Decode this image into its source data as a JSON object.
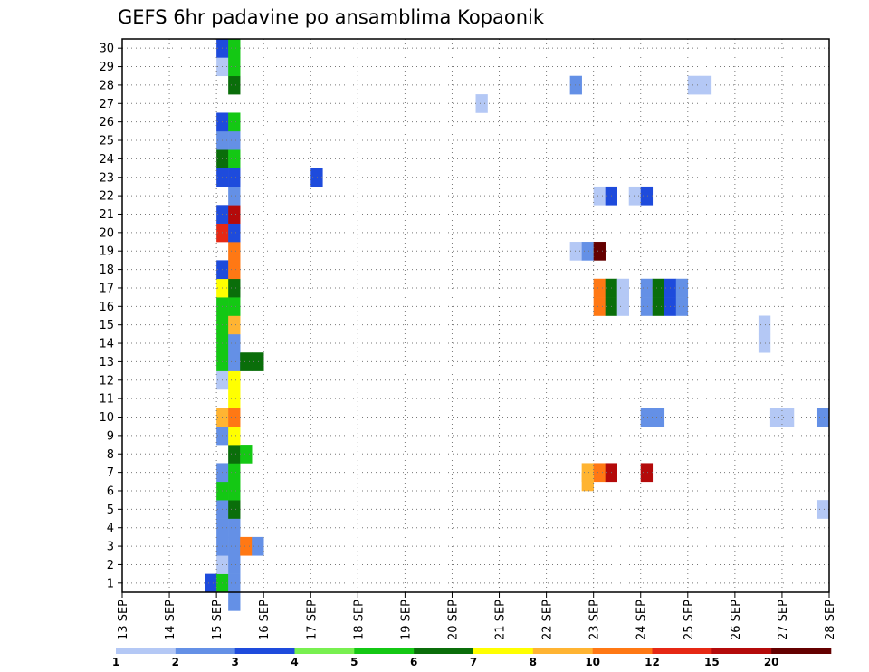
{
  "chart_data": {
    "type": "heatmap",
    "title": "GEFS 6hr padavine po ansamblima Kopaonik",
    "xlabel": "",
    "ylabel": "",
    "x_tick_labels": [
      "13 SEP",
      "14 SEP",
      "15 SEP",
      "16 SEP",
      "17 SEP",
      "18 SEP",
      "19 SEP",
      "20 SEP",
      "21 SEP",
      "22 SEP",
      "23 SEP",
      "24 SEP",
      "25 SEP",
      "26 SEP",
      "27 SEP",
      "28 SEP"
    ],
    "xlim": [
      0,
      60
    ],
    "y_tick_labels": [
      1,
      2,
      3,
      4,
      5,
      6,
      7,
      8,
      9,
      10,
      11,
      12,
      13,
      14,
      15,
      16,
      17,
      18,
      19,
      20,
      21,
      22,
      23,
      24,
      25,
      26,
      27,
      28,
      29,
      30
    ],
    "ylim": [
      0.5,
      30.5
    ],
    "grid": true,
    "time_step_hours": 6,
    "x_unit_note": "x = 6-hour step index from 13 SEP 00z",
    "legend_levels": [
      "1",
      "2",
      "3",
      "4",
      "5",
      "6",
      "7",
      "8",
      "10",
      "12",
      "15",
      "20"
    ],
    "legend_colors": [
      "#b4c8f5",
      "#6490e6",
      "#1e4bdc",
      "#78f050",
      "#14c814",
      "#0a6e0a",
      "#ffff00",
      "#ffb432",
      "#ff7814",
      "#e62814",
      "#b40a0a",
      "#640000"
    ],
    "cells": [
      [
        7,
        1,
        3
      ],
      [
        8,
        1,
        5
      ],
      [
        9,
        1,
        2
      ],
      [
        8,
        2,
        1
      ],
      [
        9,
        2,
        2
      ],
      [
        8,
        3,
        2
      ],
      [
        9,
        3,
        2
      ],
      [
        10,
        3,
        10
      ],
      [
        11,
        3,
        2
      ],
      [
        8,
        4,
        2
      ],
      [
        9,
        4,
        2
      ],
      [
        8,
        5,
        2
      ],
      [
        9,
        5,
        6
      ],
      [
        8,
        6,
        5
      ],
      [
        9,
        6,
        5
      ],
      [
        8,
        7,
        2
      ],
      [
        9,
        7,
        5
      ],
      [
        9,
        8,
        6
      ],
      [
        10,
        8,
        5
      ],
      [
        8,
        9,
        2
      ],
      [
        9,
        9,
        7
      ],
      [
        8,
        10,
        8
      ],
      [
        9,
        10,
        10
      ],
      [
        9,
        11,
        7
      ],
      [
        8,
        12,
        1
      ],
      [
        9,
        12,
        7
      ],
      [
        8,
        13,
        5
      ],
      [
        9,
        13,
        2
      ],
      [
        10,
        13,
        6
      ],
      [
        11,
        13,
        6
      ],
      [
        8,
        14,
        5
      ],
      [
        9,
        14,
        2
      ],
      [
        8,
        15,
        5
      ],
      [
        9,
        15,
        8
      ],
      [
        8,
        16,
        5
      ],
      [
        9,
        16,
        5
      ],
      [
        8,
        17,
        7
      ],
      [
        9,
        17,
        6
      ],
      [
        8,
        18,
        3
      ],
      [
        9,
        18,
        10
      ],
      [
        9,
        19,
        10
      ],
      [
        8,
        20,
        12
      ],
      [
        9,
        20,
        3
      ],
      [
        8,
        21,
        3
      ],
      [
        9,
        21,
        15
      ],
      [
        9,
        22,
        2
      ],
      [
        8,
        23,
        3
      ],
      [
        9,
        23,
        3
      ],
      [
        8,
        24,
        6
      ],
      [
        9,
        24,
        5
      ],
      [
        8,
        25,
        2
      ],
      [
        9,
        25,
        2
      ],
      [
        8,
        26,
        3
      ],
      [
        9,
        26,
        5
      ],
      [
        9,
        28,
        6
      ],
      [
        8,
        29,
        1
      ],
      [
        9,
        29,
        5
      ],
      [
        8,
        30,
        3
      ],
      [
        9,
        30,
        5
      ],
      [
        9,
        0,
        2
      ],
      [
        16,
        23,
        3
      ],
      [
        30,
        27,
        1
      ],
      [
        38,
        28,
        2
      ],
      [
        48,
        28,
        1
      ],
      [
        49,
        28,
        1
      ],
      [
        40,
        22,
        1
      ],
      [
        41,
        22,
        3
      ],
      [
        43,
        22,
        1
      ],
      [
        44,
        22,
        3
      ],
      [
        38,
        19,
        1
      ],
      [
        39,
        19,
        2
      ],
      [
        40,
        19,
        20
      ],
      [
        40,
        17,
        10
      ],
      [
        41,
        17,
        6
      ],
      [
        42,
        17,
        1
      ],
      [
        44,
        17,
        2
      ],
      [
        45,
        17,
        6
      ],
      [
        46,
        17,
        3
      ],
      [
        47,
        17,
        2
      ],
      [
        40,
        16,
        10
      ],
      [
        41,
        16,
        6
      ],
      [
        42,
        16,
        1
      ],
      [
        44,
        16,
        2
      ],
      [
        45,
        16,
        6
      ],
      [
        46,
        16,
        3
      ],
      [
        47,
        16,
        2
      ],
      [
        54,
        15,
        1
      ],
      [
        54,
        14,
        1
      ],
      [
        44,
        10,
        2
      ],
      [
        45,
        10,
        2
      ],
      [
        55,
        10,
        1
      ],
      [
        56,
        10,
        1
      ],
      [
        59,
        10,
        2
      ],
      [
        39,
        7,
        8
      ],
      [
        40,
        7,
        10
      ],
      [
        41,
        7,
        15
      ],
      [
        44,
        7,
        15
      ],
      [
        39,
        6.5,
        8
      ],
      [
        59,
        5,
        1
      ]
    ]
  }
}
